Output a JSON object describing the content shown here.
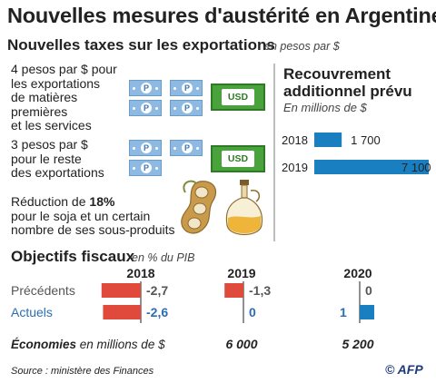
{
  "title": "Nouvelles mesures d'austérité en Argentine",
  "export_taxes": {
    "heading": "Nouvelles taxes sur les exportations",
    "unit": "en pesos par $",
    "row1": [
      "4 pesos par $ pour",
      "les exportations",
      "de matières",
      "premières",
      "et les services"
    ],
    "row2": [
      "3 pesos par $",
      "pour le reste",
      "des exportations"
    ],
    "row3_prefix": "Réduction de ",
    "row3_bold": "18%",
    "row3_rest": [
      "pour le soja et un certain",
      "nombre de ses sous-produits"
    ],
    "peso_symbol": "P",
    "usd_label": "USD"
  },
  "recovery": {
    "heading": [
      "Recouvrement",
      "additionnel prévu"
    ],
    "unit": "En millions de $"
  },
  "fiscal": {
    "heading": "Objectifs fiscaux",
    "unit": "en % du PIB",
    "years": [
      "2018",
      "2019",
      "2020"
    ],
    "rows": [
      "Précédents",
      "Actuels"
    ],
    "savings_label_bold": "Économies",
    "savings_label_rest": " en millions de $"
  },
  "source": "Source : ministère des Finances",
  "credit": "© AFP",
  "colors": {
    "blue": "#1a7fc0",
    "red": "#e04a3c",
    "green": "#49a23c",
    "peso": "#8db9e2",
    "label_blue": "#2a6db5",
    "label_grey": "#555555"
  },
  "chart_data": [
    {
      "type": "bar",
      "title": "Recouvrement additionnel prévu",
      "ylabel": "En millions de $",
      "categories": [
        "2018",
        "2019"
      ],
      "values": [
        1700,
        7100
      ],
      "value_labels": [
        "1 700",
        "7 100"
      ]
    },
    {
      "type": "bar",
      "title": "Objectifs fiscaux",
      "ylabel": "en % du PIB",
      "categories": [
        "2018",
        "2019",
        "2020"
      ],
      "series": [
        {
          "name": "Précédents",
          "values": [
            -2.7,
            -1.3,
            0
          ],
          "labels": [
            "-2,7",
            "-1,3",
            "0"
          ]
        },
        {
          "name": "Actuels",
          "values": [
            -2.6,
            0,
            1
          ],
          "labels": [
            "-2,6",
            "0",
            "1"
          ]
        }
      ],
      "savings": {
        "values": [
          null,
          6000,
          5200
        ],
        "labels": [
          "",
          "6 000",
          "5 200"
        ]
      }
    }
  ]
}
